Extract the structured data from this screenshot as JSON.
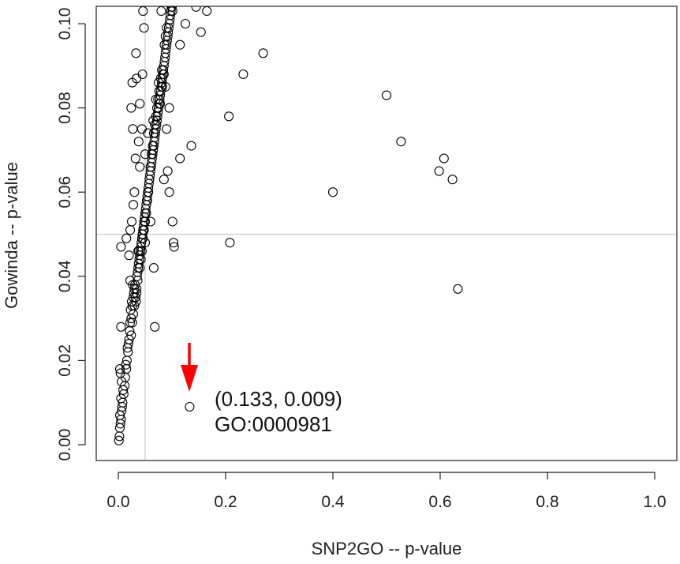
{
  "chart_data": {
    "type": "scatter",
    "xlabel": "SNP2GO -- p-value",
    "ylabel": "Gowinda -- p-value",
    "xlim": [
      0.0,
      1.0
    ],
    "ylim": [
      0.0,
      0.1
    ],
    "x_ticks": [
      "0.0",
      "0.2",
      "0.4",
      "0.6",
      "0.8",
      "1.0"
    ],
    "y_ticks": [
      "0.00",
      "0.02",
      "0.04",
      "0.06",
      "0.08",
      "0.10"
    ],
    "reference_lines": {
      "vertical_x": 0.05,
      "horizontal_y": 0.05,
      "color": "#cccccc"
    },
    "grid": false,
    "point_style": "open-circle",
    "point_color": "#000000",
    "annotation": {
      "x": 0.133,
      "y": 0.009,
      "line1": "(0.133, 0.009)",
      "line2": "GO:0000981",
      "arrow_color": "#ff0000"
    },
    "points": [
      [
        0.001,
        0.001
      ],
      [
        0.002,
        0.002
      ],
      [
        0.003,
        0.004
      ],
      [
        0.004,
        0.005
      ],
      [
        0.003,
        0.007
      ],
      [
        0.005,
        0.006
      ],
      [
        0.006,
        0.008
      ],
      [
        0.007,
        0.009
      ],
      [
        0.005,
        0.011
      ],
      [
        0.008,
        0.01
      ],
      [
        0.009,
        0.013
      ],
      [
        0.01,
        0.012
      ],
      [
        0.012,
        0.014
      ],
      [
        0.006,
        0.015
      ],
      [
        0.013,
        0.016
      ],
      [
        0.004,
        0.017
      ],
      [
        0.015,
        0.018
      ],
      [
        0.003,
        0.018
      ],
      [
        0.016,
        0.02
      ],
      [
        0.014,
        0.019
      ],
      [
        0.018,
        0.022
      ],
      [
        0.017,
        0.023
      ],
      [
        0.019,
        0.024
      ],
      [
        0.02,
        0.025
      ],
      [
        0.021,
        0.027
      ],
      [
        0.005,
        0.028
      ],
      [
        0.022,
        0.029
      ],
      [
        0.024,
        0.03
      ],
      [
        0.023,
        0.032
      ],
      [
        0.026,
        0.033
      ],
      [
        0.025,
        0.034
      ],
      [
        0.028,
        0.035
      ],
      [
        0.029,
        0.036
      ],
      [
        0.03,
        0.037
      ],
      [
        0.031,
        0.038
      ],
      [
        0.032,
        0.035
      ],
      [
        0.033,
        0.034
      ],
      [
        0.027,
        0.038
      ],
      [
        0.034,
        0.036
      ],
      [
        0.022,
        0.039
      ],
      [
        0.035,
        0.04
      ],
      [
        0.036,
        0.041
      ],
      [
        0.037,
        0.042
      ],
      [
        0.038,
        0.043
      ],
      [
        0.039,
        0.044
      ],
      [
        0.04,
        0.045
      ],
      [
        0.041,
        0.046
      ],
      [
        0.042,
        0.047
      ],
      [
        0.043,
        0.048
      ],
      [
        0.038,
        0.046
      ],
      [
        0.044,
        0.049
      ],
      [
        0.045,
        0.05
      ],
      [
        0.046,
        0.051
      ],
      [
        0.047,
        0.052
      ],
      [
        0.048,
        0.053
      ],
      [
        0.049,
        0.054
      ],
      [
        0.05,
        0.055
      ],
      [
        0.051,
        0.056
      ],
      [
        0.052,
        0.057
      ],
      [
        0.053,
        0.058
      ],
      [
        0.054,
        0.059
      ],
      [
        0.055,
        0.06
      ],
      [
        0.056,
        0.061
      ],
      [
        0.057,
        0.062
      ],
      [
        0.058,
        0.063
      ],
      [
        0.059,
        0.064
      ],
      [
        0.06,
        0.065
      ],
      [
        0.061,
        0.066
      ],
      [
        0.062,
        0.067
      ],
      [
        0.063,
        0.068
      ],
      [
        0.064,
        0.069
      ],
      [
        0.065,
        0.07
      ],
      [
        0.066,
        0.071
      ],
      [
        0.067,
        0.072
      ],
      [
        0.068,
        0.073
      ],
      [
        0.069,
        0.074
      ],
      [
        0.07,
        0.075
      ],
      [
        0.071,
        0.076
      ],
      [
        0.072,
        0.077
      ],
      [
        0.073,
        0.078
      ],
      [
        0.074,
        0.079
      ],
      [
        0.075,
        0.08
      ],
      [
        0.076,
        0.081
      ],
      [
        0.077,
        0.082
      ],
      [
        0.078,
        0.083
      ],
      [
        0.079,
        0.084
      ],
      [
        0.08,
        0.085
      ],
      [
        0.081,
        0.086
      ],
      [
        0.082,
        0.087
      ],
      [
        0.083,
        0.088
      ],
      [
        0.084,
        0.089
      ],
      [
        0.085,
        0.09
      ],
      [
        0.086,
        0.091
      ],
      [
        0.087,
        0.092
      ],
      [
        0.088,
        0.093
      ],
      [
        0.089,
        0.094
      ],
      [
        0.09,
        0.095
      ],
      [
        0.091,
        0.096
      ],
      [
        0.092,
        0.097
      ],
      [
        0.093,
        0.098
      ],
      [
        0.094,
        0.099
      ],
      [
        0.095,
        0.1
      ],
      [
        0.096,
        0.101
      ],
      [
        0.097,
        0.102
      ],
      [
        0.098,
        0.103
      ],
      [
        0.099,
        0.104
      ],
      [
        0.1,
        0.104
      ],
      [
        0.101,
        0.103
      ],
      [
        0.066,
        0.074
      ],
      [
        0.072,
        0.08
      ],
      [
        0.07,
        0.078
      ],
      [
        0.068,
        0.076
      ],
      [
        0.074,
        0.082
      ],
      [
        0.076,
        0.084
      ],
      [
        0.079,
        0.087
      ],
      [
        0.081,
        0.089
      ],
      [
        0.064,
        0.071
      ],
      [
        0.062,
        0.069
      ],
      [
        0.06,
        0.066
      ],
      [
        0.058,
        0.063
      ],
      [
        0.056,
        0.06
      ],
      [
        0.054,
        0.058
      ],
      [
        0.052,
        0.055
      ],
      [
        0.05,
        0.053
      ],
      [
        0.048,
        0.051
      ],
      [
        0.046,
        0.049
      ],
      [
        0.044,
        0.046
      ],
      [
        0.042,
        0.044
      ],
      [
        0.04,
        0.042
      ],
      [
        0.036,
        0.039
      ],
      [
        0.034,
        0.037
      ],
      [
        0.032,
        0.035
      ],
      [
        0.03,
        0.033
      ],
      [
        0.028,
        0.031
      ],
      [
        0.026,
        0.029
      ],
      [
        0.024,
        0.026
      ],
      [
        0.078,
        0.081
      ],
      [
        0.082,
        0.085
      ],
      [
        0.085,
        0.088
      ],
      [
        0.086,
        0.095
      ],
      [
        0.088,
        0.097
      ],
      [
        0.09,
        0.099
      ],
      [
        0.075,
        0.086
      ],
      [
        0.07,
        0.082
      ],
      [
        0.033,
        0.093
      ],
      [
        0.034,
        0.087
      ],
      [
        0.04,
        0.081
      ],
      [
        0.045,
        0.088
      ],
      [
        0.048,
        0.099
      ],
      [
        0.046,
        0.103
      ],
      [
        0.044,
        0.075
      ],
      [
        0.038,
        0.072
      ],
      [
        0.032,
        0.068
      ],
      [
        0.03,
        0.06
      ],
      [
        0.028,
        0.057
      ],
      [
        0.025,
        0.053
      ],
      [
        0.022,
        0.051
      ],
      [
        0.015,
        0.049
      ],
      [
        0.005,
        0.047
      ],
      [
        0.02,
        0.045
      ],
      [
        0.024,
        0.08
      ],
      [
        0.027,
        0.075
      ],
      [
        0.026,
        0.086
      ],
      [
        0.04,
        0.066
      ],
      [
        0.05,
        0.069
      ],
      [
        0.055,
        0.074
      ],
      [
        0.065,
        0.077
      ],
      [
        0.08,
        0.103
      ],
      [
        0.09,
        0.075
      ],
      [
        0.095,
        0.08
      ],
      [
        0.088,
        0.085
      ],
      [
        0.092,
        0.065
      ],
      [
        0.095,
        0.06
      ],
      [
        0.085,
        0.063
      ],
      [
        0.066,
        0.042
      ],
      [
        0.06,
        0.053
      ],
      [
        0.05,
        0.048
      ],
      [
        0.045,
        0.05
      ],
      [
        0.037,
        0.046
      ],
      [
        0.068,
        0.028
      ],
      [
        0.101,
        0.053
      ],
      [
        0.103,
        0.048
      ],
      [
        0.104,
        0.047
      ],
      [
        0.115,
        0.068
      ],
      [
        0.136,
        0.071
      ],
      [
        0.125,
        0.1
      ],
      [
        0.145,
        0.104
      ],
      [
        0.154,
        0.098
      ],
      [
        0.165,
        0.103
      ],
      [
        0.115,
        0.095
      ],
      [
        0.206,
        0.078
      ],
      [
        0.233,
        0.088
      ],
      [
        0.27,
        0.093
      ],
      [
        0.208,
        0.048
      ],
      [
        0.4,
        0.06
      ],
      [
        0.5,
        0.083
      ],
      [
        0.527,
        0.072
      ],
      [
        0.598,
        0.065
      ],
      [
        0.607,
        0.068
      ],
      [
        0.623,
        0.063
      ],
      [
        0.633,
        0.037
      ],
      [
        0.133,
        0.009
      ]
    ]
  }
}
